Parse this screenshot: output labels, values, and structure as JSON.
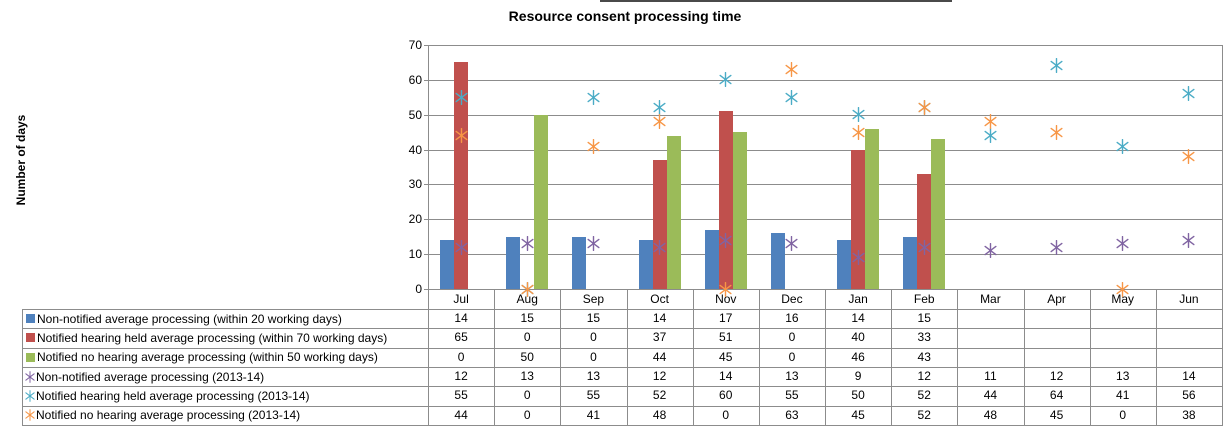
{
  "chart": {
    "title": "Resource consent processing time",
    "y_axis_title": "Number of days",
    "y_tick_labels": [
      "0",
      "10",
      "20",
      "30",
      "40",
      "50",
      "60",
      "70"
    ]
  },
  "chart_data": {
    "type": "combo",
    "title": "Resource consent processing time",
    "xlabel": "",
    "ylabel": "Number of days",
    "ylim": [
      0,
      70
    ],
    "ytick_step": 10,
    "grid": true,
    "legend_position": "left-table",
    "categories": [
      "Jul",
      "Aug",
      "Sep",
      "Oct",
      "Nov",
      "Dec",
      "Jan",
      "Feb",
      "Mar",
      "Apr",
      "May",
      "Jun"
    ],
    "series": [
      {
        "name": "Non-notified average processing (within 20 working days)",
        "type": "bar",
        "marker": "square",
        "color": "#4F81BD",
        "values": [
          14,
          15,
          15,
          14,
          17,
          16,
          14,
          15,
          null,
          null,
          null,
          null
        ]
      },
      {
        "name": "Notified hearing held average processing (within 70 working days)",
        "type": "bar",
        "marker": "square",
        "color": "#C0504D",
        "values": [
          65,
          0,
          0,
          37,
          51,
          0,
          40,
          33,
          null,
          null,
          null,
          null
        ]
      },
      {
        "name": "Notified no hearing average processing (within 50 working days)",
        "type": "bar",
        "marker": "square",
        "color": "#9BBB59",
        "values": [
          0,
          50,
          0,
          44,
          45,
          0,
          46,
          43,
          null,
          null,
          null,
          null
        ]
      },
      {
        "name": "Non-notified average processing (2013-14)",
        "type": "scatter",
        "marker": "asterisk",
        "color": "#8064A2",
        "values": [
          12,
          13,
          13,
          12,
          14,
          13,
          9,
          12,
          11,
          12,
          13,
          14
        ]
      },
      {
        "name": "Notified hearing held average processing (2013-14)",
        "type": "scatter",
        "marker": "asterisk",
        "color": "#4BACC6",
        "values": [
          55,
          0,
          55,
          52,
          60,
          55,
          50,
          52,
          44,
          64,
          41,
          56
        ]
      },
      {
        "name": "Notified no hearing average processing (2013-14)",
        "type": "scatter",
        "marker": "asterisk",
        "color": "#F79646",
        "values": [
          44,
          0,
          41,
          48,
          0,
          63,
          45,
          52,
          48,
          45,
          0,
          38
        ]
      }
    ],
    "colors": {
      "gridline": "#8C8C8C",
      "table_border": "#8C8C8C",
      "text": "#000000",
      "background": "#FFFFFF"
    }
  }
}
